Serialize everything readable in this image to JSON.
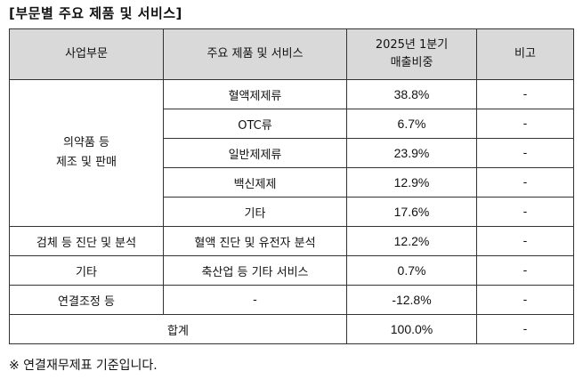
{
  "heading": "[부문별 주요 제품 및 서비스]",
  "table": {
    "headers": {
      "segment": "사업부문",
      "product": "주요 제품 및 서비스",
      "share": "2025년 1분기\n매출비중",
      "remark": "비고"
    },
    "groups": {
      "pharma": "의약품 등\n제조 및 판매"
    },
    "rows": [
      {
        "product": "혈액제제류",
        "share": "38.8%",
        "remark": "-"
      },
      {
        "product": "OTC류",
        "share": "6.7%",
        "remark": "-"
      },
      {
        "product": "일반제제류",
        "share": "23.9%",
        "remark": "-"
      },
      {
        "product": "백신제제",
        "share": "12.9%",
        "remark": "-"
      },
      {
        "product": "기타",
        "share": "17.6%",
        "remark": "-"
      },
      {
        "segment": "검체 등 진단 및 분석",
        "product": "혈액 진단 및 유전자 분석",
        "share": "12.2%",
        "remark": "-"
      },
      {
        "segment": "기타",
        "product": "축산업 등 기타 서비스",
        "share": "0.7%",
        "remark": "-"
      },
      {
        "segment": "연결조정 등",
        "product": "-",
        "share": "-12.8%",
        "remark": "-"
      }
    ],
    "total": {
      "label": "합계",
      "share": "100.0%",
      "remark": "-"
    }
  },
  "note": "※ 연결재무제표 기준입니다."
}
